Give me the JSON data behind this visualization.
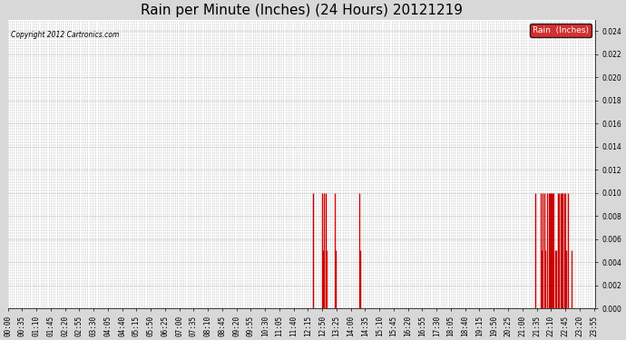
{
  "title": "Rain per Minute (Inches) (24 Hours) 20121219",
  "copyright_text": "Copyright 2012 Cartronics.com",
  "legend_label": "Rain  (Inches)",
  "legend_bg": "#cc0000",
  "legend_text_color": "#ffffff",
  "ylim": [
    0.0,
    0.025
  ],
  "yticks": [
    0.0,
    0.002,
    0.004,
    0.006,
    0.008,
    0.01,
    0.012,
    0.014,
    0.016,
    0.018,
    0.02,
    0.022,
    0.024
  ],
  "bg_color": "#d8d8d8",
  "plot_bg_color": "#ffffff",
  "line_color": "#cc0000",
  "grid_color": "#aaaaaa",
  "title_fontsize": 11,
  "tick_fontsize": 5.5,
  "label_interval": 35,
  "minor_interval": 5,
  "total_minutes": 1440,
  "rain_events": [
    {
      "minute": 747,
      "value": 0.01
    },
    {
      "minute": 769,
      "value": 0.01
    },
    {
      "minute": 771,
      "value": 0.005
    },
    {
      "minute": 773,
      "value": 0.01
    },
    {
      "minute": 775,
      "value": 0.005
    },
    {
      "minute": 779,
      "value": 0.01
    },
    {
      "minute": 781,
      "value": 0.005
    },
    {
      "minute": 800,
      "value": 0.01
    },
    {
      "minute": 802,
      "value": 0.005
    },
    {
      "minute": 861,
      "value": 0.01
    },
    {
      "minute": 863,
      "value": 0.005
    },
    {
      "minute": 1291,
      "value": 0.01
    },
    {
      "minute": 1305,
      "value": 0.01
    },
    {
      "minute": 1307,
      "value": 0.005
    },
    {
      "minute": 1310,
      "value": 0.01
    },
    {
      "minute": 1313,
      "value": 0.01
    },
    {
      "minute": 1316,
      "value": 0.005
    },
    {
      "minute": 1320,
      "value": 0.01
    },
    {
      "minute": 1325,
      "value": 0.01
    },
    {
      "minute": 1327,
      "value": 0.01
    },
    {
      "minute": 1329,
      "value": 0.01
    },
    {
      "minute": 1331,
      "value": 0.01
    },
    {
      "minute": 1334,
      "value": 0.01
    },
    {
      "minute": 1337,
      "value": 0.01
    },
    {
      "minute": 1340,
      "value": 0.005
    },
    {
      "minute": 1343,
      "value": 0.005
    },
    {
      "minute": 1347,
      "value": 0.01
    },
    {
      "minute": 1350,
      "value": 0.01
    },
    {
      "minute": 1353,
      "value": 0.01
    },
    {
      "minute": 1356,
      "value": 0.01
    },
    {
      "minute": 1359,
      "value": 0.01
    },
    {
      "minute": 1362,
      "value": 0.01
    },
    {
      "minute": 1365,
      "value": 0.01
    },
    {
      "minute": 1368,
      "value": 0.005
    },
    {
      "minute": 1371,
      "value": 0.01
    },
    {
      "minute": 1380,
      "value": 0.005
    }
  ]
}
